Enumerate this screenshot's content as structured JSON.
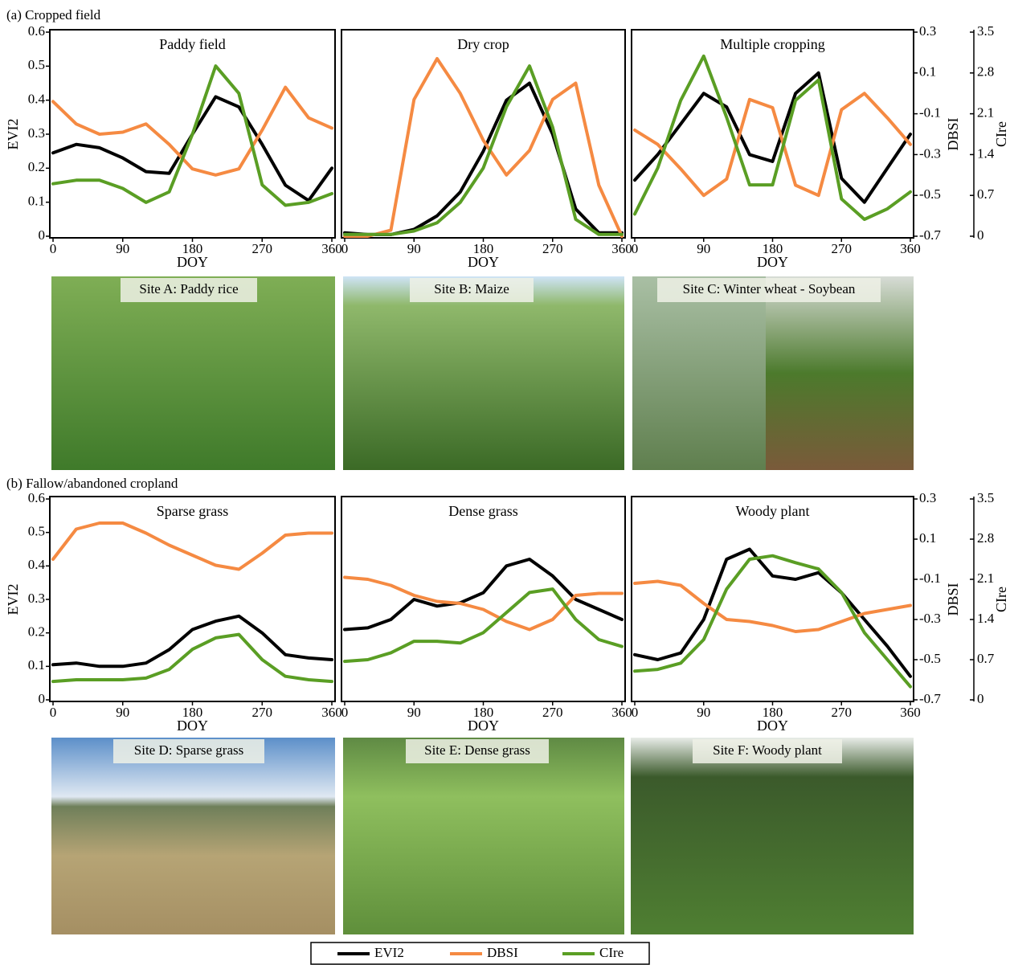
{
  "sections": [
    "(a) Cropped field",
    "(b) Fallow/abandoned cropland"
  ],
  "photos": [
    "Site A: Paddy rice",
    "Site B: Maize",
    "Site C: Winter wheat - Soybean",
    "Site D: Sparse grass",
    "Site E: Dense grass",
    "Site F: Woody plant"
  ],
  "chart_data": [
    {
      "type": "line",
      "title": "Paddy field",
      "xlabel": "DOY",
      "ylabel": "EVI2",
      "x": [
        0,
        30,
        60,
        90,
        120,
        150,
        180,
        210,
        240,
        270,
        300,
        330,
        360
      ],
      "xlim": [
        0,
        360
      ],
      "xticks": [
        0,
        90,
        180,
        270,
        360
      ],
      "ylim": [
        0,
        0.6
      ],
      "yticks": [
        0,
        0.1,
        0.2,
        0.3,
        0.4,
        0.5,
        0.6
      ],
      "y2lim": [
        -0.7,
        0.3
      ],
      "y3lim": [
        0,
        3.5
      ],
      "series": [
        {
          "name": "EVI2",
          "color": "#000000",
          "values": [
            0.245,
            0.27,
            0.26,
            0.23,
            0.19,
            0.185,
            0.3,
            0.41,
            0.38,
            0.27,
            0.15,
            0.105,
            0.2
          ]
        },
        {
          "name": "DBSI",
          "color": "#f58a42",
          "axis": "y2",
          "values": [
            -0.04,
            -0.15,
            -0.2,
            -0.19,
            -0.15,
            -0.25,
            -0.37,
            -0.4,
            -0.37,
            -0.18,
            0.03,
            -0.12,
            -0.17
          ]
        },
        {
          "name": "CIre",
          "color": "#5a9e24",
          "axis": "y3",
          "values": [
            0.9,
            0.96,
            0.96,
            0.82,
            0.58,
            0.76,
            1.75,
            2.92,
            2.45,
            0.88,
            0.53,
            0.58,
            0.73
          ]
        }
      ]
    },
    {
      "type": "line",
      "title": "Dry crop",
      "xlabel": "DOY",
      "x": [
        0,
        30,
        60,
        90,
        120,
        150,
        180,
        210,
        240,
        270,
        300,
        330,
        360
      ],
      "xlim": [
        0,
        360
      ],
      "xticks": [
        0,
        90,
        180,
        270,
        360
      ],
      "ylim": [
        0,
        0.6
      ],
      "y2lim": [
        -0.7,
        0.3
      ],
      "y3lim": [
        0,
        3.5
      ],
      "series": [
        {
          "name": "EVI2",
          "color": "#000000",
          "values": [
            0.01,
            0.005,
            0.005,
            0.02,
            0.06,
            0.13,
            0.25,
            0.4,
            0.45,
            0.3,
            0.08,
            0.01,
            0.01
          ]
        },
        {
          "name": "DBSI",
          "color": "#f58a42",
          "axis": "y2",
          "values": [
            -0.7,
            -0.7,
            -0.67,
            -0.03,
            0.17,
            0,
            -0.23,
            -0.4,
            -0.28,
            -0.03,
            0.05,
            -0.45,
            -0.7
          ]
        },
        {
          "name": "CIre",
          "color": "#5a9e24",
          "axis": "y3",
          "values": [
            0.03,
            0.03,
            0.03,
            0.09,
            0.23,
            0.58,
            1.17,
            2.22,
            2.92,
            1.87,
            0.29,
            0.03,
            0.03
          ]
        }
      ]
    },
    {
      "type": "line",
      "title": "Multiple cropping",
      "xlabel": "DOY",
      "y2label": "DBSI",
      "y3label": "CIre",
      "x": [
        0,
        30,
        60,
        90,
        120,
        150,
        180,
        210,
        240,
        270,
        300,
        330,
        360
      ],
      "xlim": [
        0,
        360
      ],
      "xticks": [
        0,
        90,
        180,
        270,
        360
      ],
      "ylim": [
        0,
        0.6
      ],
      "y2lim": [
        -0.7,
        0.3
      ],
      "y2ticks": [
        -0.7,
        -0.5,
        -0.3,
        -0.1,
        0.1,
        0.3
      ],
      "y3lim": [
        0,
        3.5
      ],
      "y3ticks": [
        0,
        0.7,
        1.4,
        2.1,
        2.8,
        3.5
      ],
      "series": [
        {
          "name": "EVI2",
          "color": "#000000",
          "values": [
            0.165,
            0.24,
            0.33,
            0.42,
            0.38,
            0.24,
            0.22,
            0.42,
            0.48,
            0.17,
            0.1,
            0.2,
            0.3
          ]
        },
        {
          "name": "DBSI",
          "color": "#f58a42",
          "axis": "y2",
          "values": [
            -0.18,
            -0.25,
            -0.37,
            -0.5,
            -0.42,
            -0.03,
            -0.07,
            -0.45,
            -0.5,
            -0.08,
            0,
            -0.12,
            -0.25
          ]
        },
        {
          "name": "CIre",
          "color": "#5a9e24",
          "axis": "y3",
          "values": [
            0.38,
            1.17,
            2.33,
            3.09,
            2.04,
            0.88,
            0.88,
            2.33,
            2.68,
            0.64,
            0.29,
            0.47,
            0.76
          ]
        }
      ]
    },
    {
      "type": "line",
      "title": "Sparse grass",
      "xlabel": "DOY",
      "ylabel": "EVI2",
      "x": [
        0,
        30,
        60,
        90,
        120,
        150,
        180,
        210,
        240,
        270,
        300,
        330,
        360
      ],
      "xlim": [
        0,
        360
      ],
      "xticks": [
        0,
        90,
        180,
        270,
        360
      ],
      "ylim": [
        0,
        0.6
      ],
      "yticks": [
        0,
        0.1,
        0.2,
        0.3,
        0.4,
        0.5,
        0.6
      ],
      "y2lim": [
        -0.7,
        0.3
      ],
      "y3lim": [
        0,
        3.5
      ],
      "series": [
        {
          "name": "EVI2",
          "color": "#000000",
          "values": [
            0.105,
            0.11,
            0.1,
            0.1,
            0.11,
            0.15,
            0.21,
            0.235,
            0.25,
            0.2,
            0.135,
            0.125,
            0.12
          ]
        },
        {
          "name": "DBSI",
          "color": "#f58a42",
          "axis": "y2",
          "values": [
            0,
            0.15,
            0.18,
            0.18,
            0.13,
            0.07,
            0.02,
            -0.03,
            -0.05,
            0.03,
            0.12,
            0.13,
            0.13
          ]
        },
        {
          "name": "CIre",
          "color": "#5a9e24",
          "axis": "y3",
          "values": [
            0.32,
            0.35,
            0.35,
            0.35,
            0.38,
            0.53,
            0.88,
            1.08,
            1.14,
            0.7,
            0.41,
            0.35,
            0.32
          ]
        }
      ]
    },
    {
      "type": "line",
      "title": "Dense grass",
      "xlabel": "DOY",
      "x": [
        0,
        30,
        60,
        90,
        120,
        150,
        180,
        210,
        240,
        270,
        300,
        330,
        360
      ],
      "xlim": [
        0,
        360
      ],
      "xticks": [
        0,
        90,
        180,
        270,
        360
      ],
      "ylim": [
        0,
        0.6
      ],
      "y2lim": [
        -0.7,
        0.3
      ],
      "y3lim": [
        0,
        3.5
      ],
      "series": [
        {
          "name": "EVI2",
          "color": "#000000",
          "values": [
            0.21,
            0.215,
            0.24,
            0.3,
            0.28,
            0.29,
            0.32,
            0.4,
            0.42,
            0.37,
            0.3,
            0.27,
            0.24
          ]
        },
        {
          "name": "DBSI",
          "color": "#f58a42",
          "axis": "y2",
          "values": [
            -0.09,
            -0.1,
            -0.13,
            -0.18,
            -0.21,
            -0.22,
            -0.25,
            -0.31,
            -0.35,
            -0.3,
            -0.18,
            -0.17,
            -0.17
          ]
        },
        {
          "name": "CIre",
          "color": "#5a9e24",
          "axis": "y3",
          "values": [
            0.67,
            0.7,
            0.82,
            1.02,
            1.02,
            0.99,
            1.17,
            1.52,
            1.87,
            1.93,
            1.4,
            1.05,
            0.93
          ]
        }
      ]
    },
    {
      "type": "line",
      "title": "Woody plant",
      "xlabel": "DOY",
      "y2label": "DBSI",
      "y3label": "CIre",
      "x": [
        0,
        30,
        60,
        90,
        120,
        150,
        180,
        210,
        240,
        270,
        300,
        330,
        360
      ],
      "xlim": [
        0,
        360
      ],
      "xticks": [
        0,
        90,
        180,
        270,
        360
      ],
      "ylim": [
        0,
        0.6
      ],
      "y2lim": [
        -0.7,
        0.3
      ],
      "y2ticks": [
        -0.7,
        -0.5,
        -0.3,
        -0.1,
        0.1,
        0.3
      ],
      "y3lim": [
        0,
        3.5
      ],
      "y3ticks": [
        0,
        0.7,
        1.4,
        2.1,
        2.8,
        3.5
      ],
      "series": [
        {
          "name": "EVI2",
          "color": "#000000",
          "values": [
            0.135,
            0.12,
            0.14,
            0.24,
            0.42,
            0.45,
            0.37,
            0.36,
            0.38,
            0.32,
            0.24,
            0.16,
            0.07
          ]
        },
        {
          "name": "DBSI",
          "color": "#f58a42",
          "axis": "y2",
          "values": [
            -0.12,
            -0.11,
            -0.13,
            -0.22,
            -0.3,
            -0.31,
            -0.33,
            -0.36,
            -0.35,
            -0.31,
            -0.27,
            -0.25,
            -0.23
          ]
        },
        {
          "name": "CIre",
          "color": "#5a9e24",
          "axis": "y3",
          "values": [
            0.5,
            0.53,
            0.64,
            1.05,
            1.93,
            2.45,
            2.51,
            2.39,
            2.28,
            1.87,
            1.17,
            0.7,
            0.23
          ]
        }
      ]
    }
  ]
}
